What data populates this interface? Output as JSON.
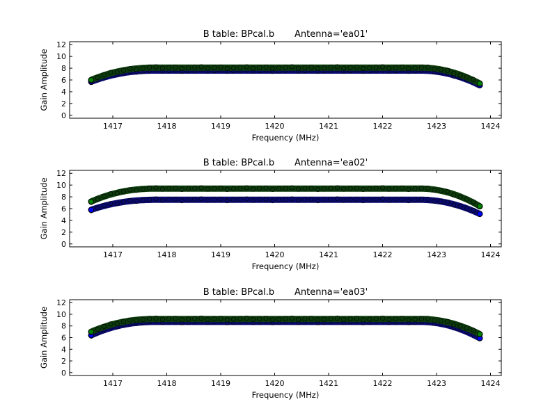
{
  "chart_data": [
    {
      "type": "scatter",
      "title": "B table: BPcal.b       Antenna='ea01'",
      "xlabel": "Frequency (MHz)",
      "ylabel": "Gain Amplitude",
      "xlim": [
        1416.2,
        1424.2
      ],
      "ylim": [
        -0.5,
        12.5
      ],
      "xticks": [
        1417,
        1418,
        1419,
        1420,
        1421,
        1422,
        1423,
        1424
      ],
      "yticks": [
        0,
        2,
        4,
        6,
        8,
        10,
        12
      ],
      "x_range": [
        1416.6,
        1423.8
      ],
      "series": [
        {
          "color": "#0a0a6e",
          "edge_value": 5.7,
          "plateau_value": 7.6,
          "end_value": 5.1
        },
        {
          "color": "#0c3a0c",
          "edge_value": 6.0,
          "plateau_value": 8.1,
          "end_value": 5.4
        }
      ]
    },
    {
      "type": "scatter",
      "title": "B table: BPcal.b       Antenna='ea02'",
      "xlabel": "Frequency (MHz)",
      "ylabel": "Gain Amplitude",
      "xlim": [
        1416.2,
        1424.2
      ],
      "ylim": [
        -0.5,
        12.5
      ],
      "xticks": [
        1417,
        1418,
        1419,
        1420,
        1421,
        1422,
        1423,
        1424
      ],
      "yticks": [
        0,
        2,
        4,
        6,
        8,
        10,
        12
      ],
      "x_range": [
        1416.6,
        1423.8
      ],
      "series": [
        {
          "color": "#0a0a6e",
          "edge_value": 5.8,
          "plateau_value": 7.5,
          "end_value": 5.1
        },
        {
          "color": "#0c3a0c",
          "edge_value": 7.2,
          "plateau_value": 9.4,
          "end_value": 6.4
        }
      ]
    },
    {
      "type": "scatter",
      "title": "B table: BPcal.b       Antenna='ea03'",
      "xlabel": "Frequency (MHz)",
      "ylabel": "Gain Amplitude",
      "xlim": [
        1416.2,
        1424.2
      ],
      "ylim": [
        -0.5,
        12.5
      ],
      "xticks": [
        1417,
        1418,
        1419,
        1420,
        1421,
        1422,
        1423,
        1424
      ],
      "yticks": [
        0,
        2,
        4,
        6,
        8,
        10,
        12
      ],
      "x_range": [
        1416.6,
        1423.8
      ],
      "series": [
        {
          "color": "#0a0a6e",
          "edge_value": 6.4,
          "plateau_value": 8.7,
          "end_value": 5.9
        },
        {
          "color": "#0c3a0c",
          "edge_value": 7.0,
          "plateau_value": 9.2,
          "end_value": 6.6
        }
      ]
    }
  ]
}
